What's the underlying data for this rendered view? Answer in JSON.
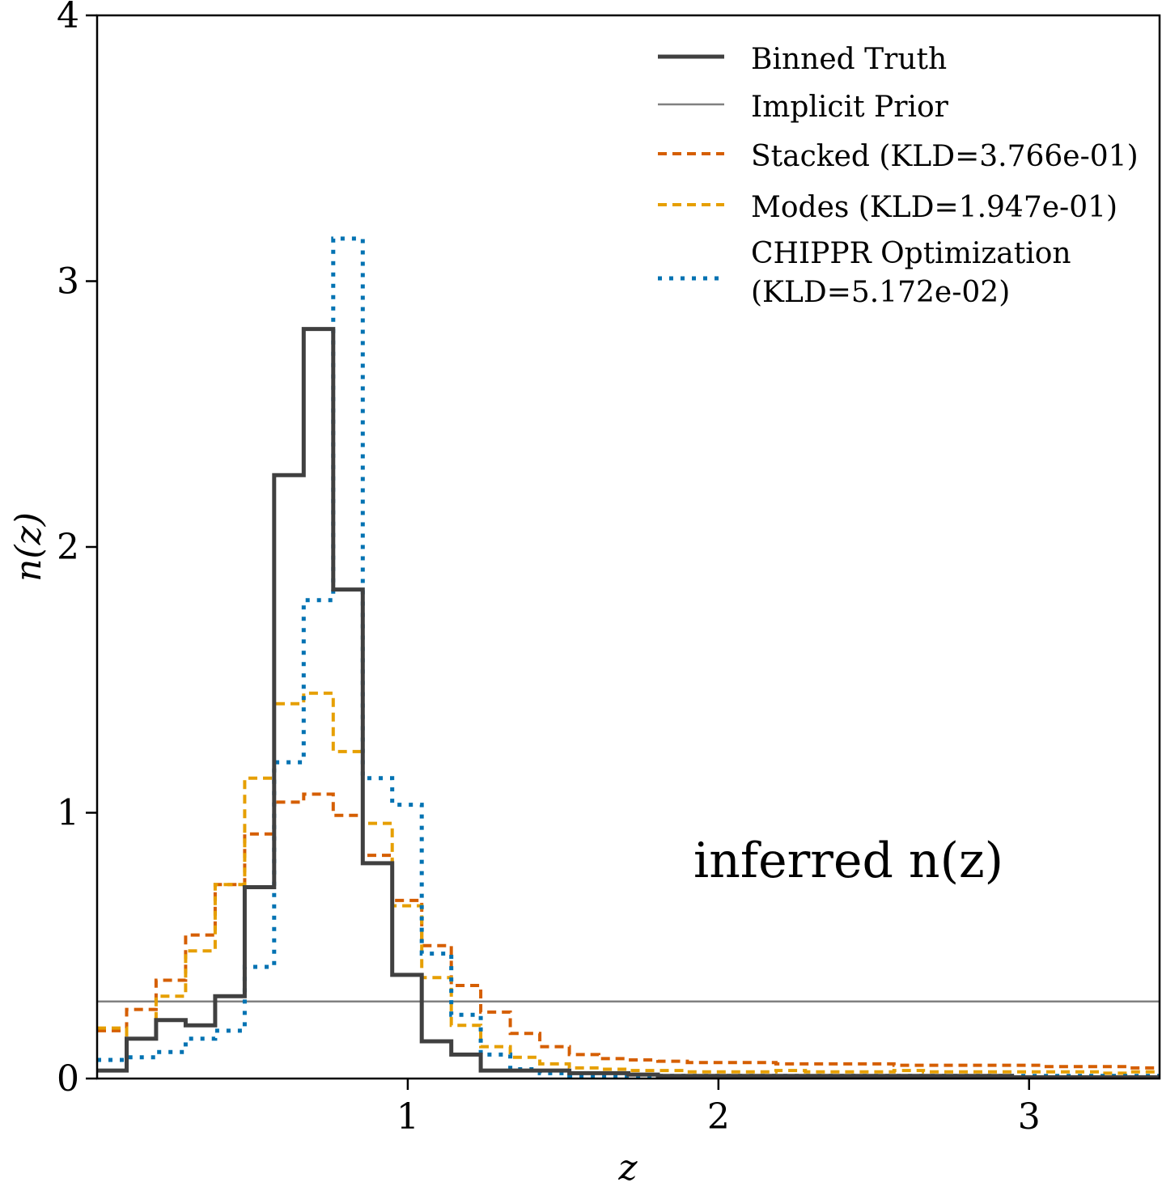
{
  "chart_data": {
    "type": "line",
    "title": "",
    "xlabel": "z",
    "ylabel": "n(z)",
    "xlim": [
      0.0,
      3.42
    ],
    "ylim": [
      0,
      4
    ],
    "x_ticks": [
      1,
      2,
      3
    ],
    "y_ticks": [
      0,
      1,
      2,
      3,
      4
    ],
    "x_tick_labels": [
      "1",
      "2",
      "3"
    ],
    "y_tick_labels": [
      "0",
      "1",
      "2",
      "3",
      "4"
    ],
    "grid": false,
    "legend_position": "top-right",
    "annotation": "inferred n(z)",
    "bin_edges": [
      0.0,
      0.095,
      0.19,
      0.285,
      0.38,
      0.475,
      0.57,
      0.665,
      0.76,
      0.855,
      0.95,
      1.045,
      1.14,
      1.235,
      1.33,
      1.425,
      1.52,
      1.615,
      1.71,
      1.805,
      1.9,
      1.995,
      2.09,
      2.185,
      2.28,
      2.375,
      2.47,
      2.565,
      2.66,
      2.755,
      2.85,
      2.945,
      3.04,
      3.135,
      3.23,
      3.325,
      3.42
    ],
    "series": [
      {
        "name": "Binned Truth",
        "color": "#404040",
        "style": "solid-thick",
        "values": [
          0.03,
          0.15,
          0.22,
          0.2,
          0.31,
          0.72,
          2.27,
          2.82,
          1.84,
          0.81,
          0.39,
          0.14,
          0.09,
          0.03,
          0.03,
          0.03,
          0.02,
          0.02,
          0.015,
          0.01,
          0.01,
          0.01,
          0.01,
          0.01,
          0.01,
          0.01,
          0.01,
          0.01,
          0.01,
          0.01,
          0.01,
          0.005,
          0.005,
          0.005,
          0.005,
          0.005
        ]
      },
      {
        "name": "Implicit Prior",
        "color": "#808080",
        "style": "solid-thin",
        "values": [
          0.29,
          0.29,
          0.29,
          0.29,
          0.29,
          0.29,
          0.29,
          0.29,
          0.29,
          0.29,
          0.29,
          0.29,
          0.29,
          0.29,
          0.29,
          0.29,
          0.29,
          0.29,
          0.29,
          0.29,
          0.29,
          0.29,
          0.29,
          0.29,
          0.29,
          0.29,
          0.29,
          0.29,
          0.29,
          0.29,
          0.29,
          0.29,
          0.29,
          0.29,
          0.29,
          0.29
        ]
      },
      {
        "name": "Stacked (KLD=3.766e-01)",
        "color": "#d55e00",
        "style": "dashed",
        "values": [
          0.18,
          0.26,
          0.37,
          0.54,
          0.73,
          0.92,
          1.04,
          1.07,
          0.99,
          0.84,
          0.67,
          0.5,
          0.35,
          0.25,
          0.17,
          0.12,
          0.09,
          0.075,
          0.07,
          0.065,
          0.06,
          0.06,
          0.06,
          0.055,
          0.055,
          0.055,
          0.055,
          0.05,
          0.05,
          0.05,
          0.05,
          0.05,
          0.045,
          0.045,
          0.045,
          0.04
        ]
      },
      {
        "name": "Modes (KLD=1.947e-01)",
        "color": "#e69f00",
        "style": "dashed",
        "values": [
          0.19,
          0.15,
          0.31,
          0.48,
          0.73,
          1.13,
          1.41,
          1.45,
          1.23,
          0.96,
          0.65,
          0.38,
          0.2,
          0.12,
          0.08,
          0.055,
          0.04,
          0.035,
          0.03,
          0.03,
          0.025,
          0.025,
          0.025,
          0.03,
          0.025,
          0.025,
          0.025,
          0.03,
          0.025,
          0.025,
          0.025,
          0.025,
          0.025,
          0.025,
          0.02,
          0.025
        ]
      },
      {
        "name": "CHIPPR Optimization (KLD=5.172e-02)",
        "legend_lines": [
          "CHIPPR Optimization",
          "(KLD=5.172e-02)"
        ],
        "color": "#0072b2",
        "style": "dotted",
        "values": [
          0.07,
          0.08,
          0.1,
          0.15,
          0.18,
          0.42,
          1.19,
          1.8,
          3.16,
          1.13,
          1.03,
          0.47,
          0.24,
          0.09,
          0.035,
          0.02,
          0.01,
          0.01,
          0.01,
          0.01,
          0.01,
          0.01,
          0.01,
          0.01,
          0.01,
          0.01,
          0.01,
          0.01,
          0.01,
          0.01,
          0.01,
          0.01,
          0.01,
          0.01,
          0.01,
          0.01
        ]
      }
    ]
  }
}
